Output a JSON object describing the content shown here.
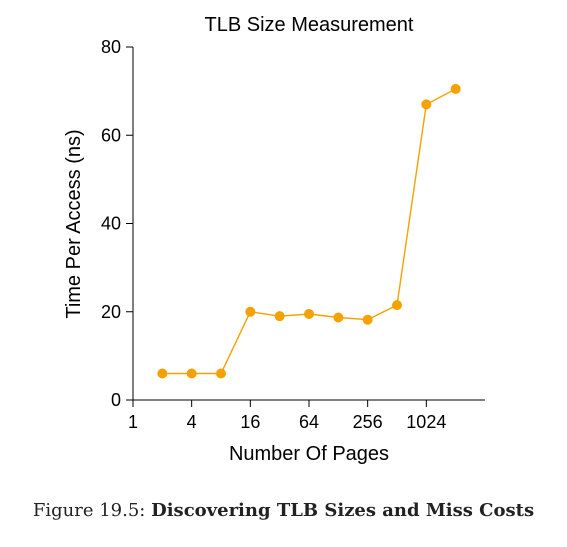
{
  "chart_data": {
    "type": "line",
    "title": "TLB Size Measurement",
    "xlabel": "Number Of Pages",
    "ylabel": "Time Per Access (ns)",
    "x_scale": "log2",
    "xlim": [
      1,
      4096
    ],
    "ylim": [
      0,
      80
    ],
    "x_ticks": [
      1,
      4,
      16,
      64,
      256,
      1024
    ],
    "x_tick_labels": [
      "1",
      "4",
      "16",
      "64",
      "256",
      "1024"
    ],
    "y_ticks": [
      0,
      20,
      40,
      60,
      80
    ],
    "y_tick_labels": [
      "0",
      "20",
      "40",
      "60",
      "80"
    ],
    "grid": false,
    "series": [
      {
        "color": "#f5a100",
        "x": [
          2,
          4,
          8,
          16,
          32,
          64,
          128,
          256,
          512,
          1024,
          2048
        ],
        "y": [
          6,
          6,
          6,
          20,
          19,
          19.5,
          18.7,
          18.2,
          21.5,
          67,
          70.5
        ]
      }
    ]
  },
  "caption": {
    "label": "Figure 19.5:",
    "text": "Discovering TLB Sizes and Miss Costs"
  }
}
